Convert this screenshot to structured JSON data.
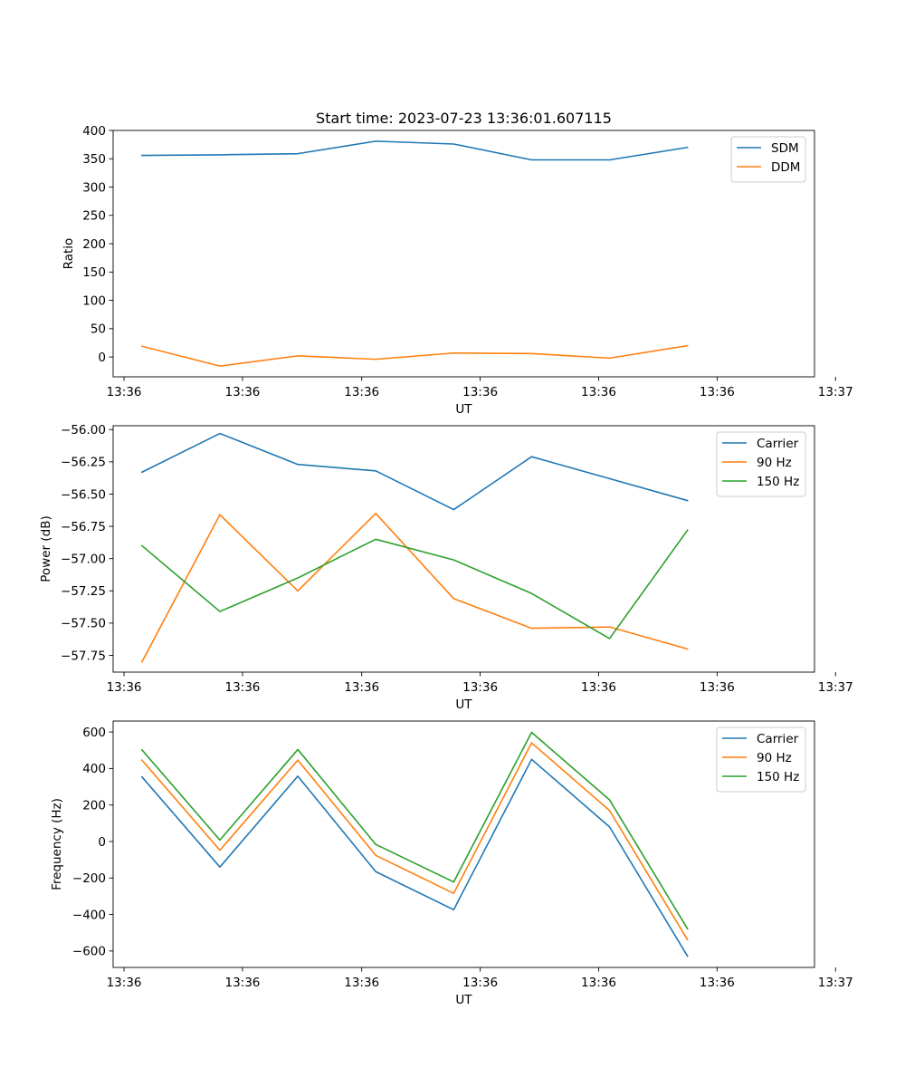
{
  "chart_data": [
    {
      "type": "line",
      "title": "Start time: 2023-07-23 13:36:01.607115",
      "xlabel": "UT",
      "ylabel": "Ratio",
      "x": [
        0,
        1,
        2,
        3,
        4,
        5,
        6,
        7
      ],
      "xlim": [
        -0.37,
        8.63
      ],
      "xticks": [
        -0.23,
        1.29,
        2.82,
        4.34,
        5.86,
        7.38,
        8.9
      ],
      "xtick_labels": [
        "13:36",
        "13:36",
        "13:36",
        "13:36",
        "13:36",
        "13:36",
        "13:37"
      ],
      "ylim": [
        -35,
        400
      ],
      "yticks": [
        0,
        50,
        100,
        150,
        200,
        250,
        300,
        350,
        400
      ],
      "ytick_labels": [
        "0",
        "50",
        "100",
        "150",
        "200",
        "250",
        "300",
        "350",
        "400"
      ],
      "legend_position": "top-right",
      "grid": false,
      "series": [
        {
          "name": "SDM",
          "color": "#1f77b4",
          "values": [
            356,
            357,
            359,
            381,
            376,
            348,
            348,
            370
          ]
        },
        {
          "name": "DDM",
          "color": "#ff7f0e",
          "values": [
            19,
            -16,
            2,
            -4,
            7,
            6,
            -2,
            20
          ]
        }
      ]
    },
    {
      "type": "line",
      "title": "",
      "xlabel": "UT",
      "ylabel": "Power (dB)",
      "x": [
        0,
        1,
        2,
        3,
        4,
        5,
        6,
        7
      ],
      "xlim": [
        -0.37,
        8.63
      ],
      "xticks": [
        -0.23,
        1.29,
        2.82,
        4.34,
        5.86,
        7.38,
        8.9
      ],
      "xtick_labels": [
        "13:36",
        "13:36",
        "13:36",
        "13:36",
        "13:36",
        "13:36",
        "13:37"
      ],
      "ylim": [
        -57.88,
        -55.97
      ],
      "yticks": [
        -57.75,
        -57.5,
        -57.25,
        -57.0,
        -56.75,
        -56.5,
        -56.25,
        -56.0
      ],
      "ytick_labels": [
        "−57.75",
        "−57.50",
        "−57.25",
        "−57.00",
        "−56.75",
        "−56.50",
        "−56.25",
        "−56.00"
      ],
      "legend_position": "top-right",
      "grid": false,
      "series": [
        {
          "name": "Carrier",
          "color": "#1f77b4",
          "values": [
            -56.33,
            -56.03,
            -56.27,
            -56.32,
            -56.62,
            -56.21,
            -56.38,
            -56.55
          ]
        },
        {
          "name": "90 Hz",
          "color": "#ff7f0e",
          "values": [
            -57.8,
            -56.66,
            -57.25,
            -56.65,
            -57.31,
            -57.54,
            -57.53,
            -57.7
          ]
        },
        {
          "name": "150 Hz",
          "color": "#2ca02c",
          "values": [
            -56.9,
            -57.41,
            -57.15,
            -56.85,
            -57.01,
            -57.27,
            -57.62,
            -56.78
          ]
        }
      ]
    },
    {
      "type": "line",
      "title": "",
      "xlabel": "UT",
      "ylabel": "Frequency (Hz)",
      "x": [
        0,
        1,
        2,
        3,
        4,
        5,
        6,
        7
      ],
      "xlim": [
        -0.37,
        8.63
      ],
      "xticks": [
        -0.23,
        1.29,
        2.82,
        4.34,
        5.86,
        7.38,
        8.9
      ],
      "xtick_labels": [
        "13:36",
        "13:36",
        "13:36",
        "13:36",
        "13:36",
        "13:36",
        "13:37"
      ],
      "ylim": [
        -690,
        660
      ],
      "yticks": [
        -600,
        -400,
        -200,
        0,
        200,
        400,
        600
      ],
      "ytick_labels": [
        "−600",
        "−400",
        "−200",
        "0",
        "200",
        "400",
        "600"
      ],
      "legend_position": "top-right",
      "grid": false,
      "series": [
        {
          "name": "Carrier",
          "color": "#1f77b4",
          "values": [
            354,
            -140,
            358,
            -165,
            -374,
            450,
            80,
            -628
          ]
        },
        {
          "name": "90 Hz",
          "color": "#ff7f0e",
          "values": [
            446,
            -48,
            446,
            -76,
            -284,
            540,
            170,
            -538
          ]
        },
        {
          "name": "150 Hz",
          "color": "#2ca02c",
          "values": [
            502,
            8,
            504,
            -16,
            -222,
            598,
            228,
            -478
          ]
        }
      ]
    }
  ]
}
